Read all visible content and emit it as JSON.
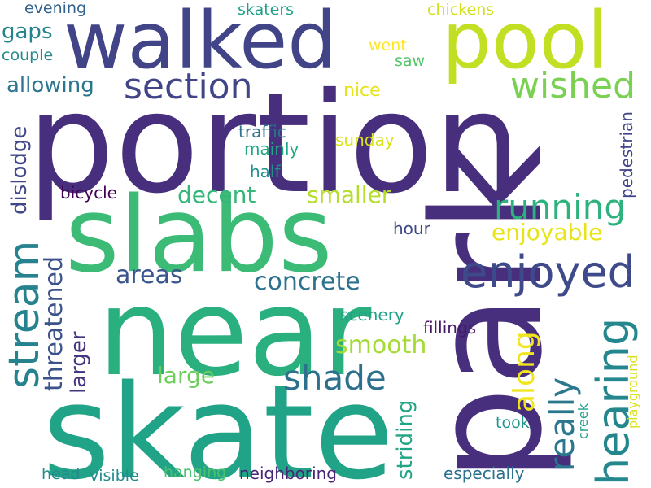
{
  "words": [
    {
      "text": "portion",
      "color": "#472f7d"
    },
    {
      "text": "park",
      "color": "#472f7d"
    },
    {
      "text": "skate",
      "color": "#20a386"
    },
    {
      "text": "near",
      "color": "#2ab07f"
    },
    {
      "text": "slabs",
      "color": "#3bbb75"
    },
    {
      "text": "walked",
      "color": "#414487"
    },
    {
      "text": "pool",
      "color": "#c2df23"
    },
    {
      "text": "enjoyed",
      "color": "#3e4a89"
    },
    {
      "text": "hearing",
      "color": "#24878e"
    },
    {
      "text": "stream",
      "color": "#26828e"
    },
    {
      "text": "section",
      "color": "#414487"
    },
    {
      "text": "wished",
      "color": "#7ad151"
    },
    {
      "text": "running",
      "color": "#2db27d"
    },
    {
      "text": "shade",
      "color": "#2d708e"
    },
    {
      "text": "really",
      "color": "#2a778e"
    },
    {
      "text": "along",
      "color": "#f1e51d"
    },
    {
      "text": "threatened",
      "color": "#3b528b"
    },
    {
      "text": "concrete",
      "color": "#2c728e"
    },
    {
      "text": "smooth",
      "color": "#a5db36"
    },
    {
      "text": "decent",
      "color": "#35b779"
    },
    {
      "text": "smaller",
      "color": "#b5de2b"
    },
    {
      "text": "enjoyable",
      "color": "#e7e419"
    },
    {
      "text": "areas",
      "color": "#39558c"
    },
    {
      "text": "allowing",
      "color": "#2b758e"
    },
    {
      "text": "dislodge",
      "color": "#404688"
    },
    {
      "text": "larger",
      "color": "#46337f"
    },
    {
      "text": "large",
      "color": "#6ccd5a"
    },
    {
      "text": "striding",
      "color": "#21a685"
    },
    {
      "text": "gaps",
      "color": "#25838e"
    },
    {
      "text": "skaters",
      "color": "#1fa088"
    },
    {
      "text": "chickens",
      "color": "#d0e11c"
    },
    {
      "text": "evening",
      "color": "#33638d"
    },
    {
      "text": "couple",
      "color": "#23898e"
    },
    {
      "text": "went",
      "color": "#fde725"
    },
    {
      "text": "saw",
      "color": "#52c569"
    },
    {
      "text": "nice",
      "color": "#e5e419"
    },
    {
      "text": "traffic",
      "color": "#2c728e"
    },
    {
      "text": "mainly",
      "color": "#22a884"
    },
    {
      "text": "sunday",
      "color": "#dae319"
    },
    {
      "text": "half",
      "color": "#21918c"
    },
    {
      "text": "pedestrian",
      "color": "#404588"
    },
    {
      "text": "bicycle",
      "color": "#440154"
    },
    {
      "text": "hour",
      "color": "#3f4889"
    },
    {
      "text": "fillings",
      "color": "#48186a"
    },
    {
      "text": "scenery",
      "color": "#1fa187"
    },
    {
      "text": "creek",
      "color": "#1f9e89"
    },
    {
      "text": "playground",
      "color": "#d8e219"
    },
    {
      "text": "took",
      "color": "#1f958b"
    },
    {
      "text": "neighboring",
      "color": "#482576"
    },
    {
      "text": "hanging",
      "color": "#4ac16d"
    },
    {
      "text": "visible",
      "color": "#238a8d"
    },
    {
      "text": "head",
      "color": "#228c8d"
    },
    {
      "text": "especially",
      "color": "#2c718e"
    }
  ]
}
